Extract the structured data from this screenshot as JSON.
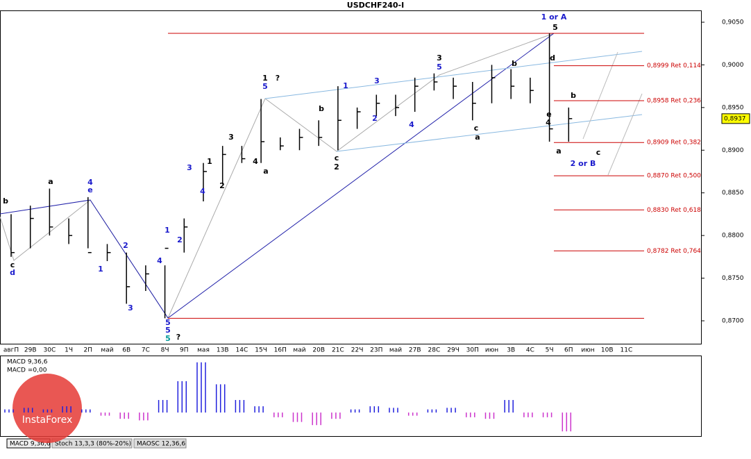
{
  "chart_data": [
    {
      "type": "ohlc",
      "title": "USDCHF240-I",
      "categories": [
        "авгП",
        "29В",
        "30С",
        "1Ч",
        "2П",
        "май",
        "6В",
        "7С",
        "8Ч",
        "9П",
        "мая",
        "13В",
        "14С",
        "15Ч",
        "16П",
        "май",
        "20В",
        "21С",
        "22Ч",
        "23П",
        "май",
        "27В",
        "28С",
        "29Ч",
        "30П",
        "июн",
        "3В",
        "4С",
        "5Ч",
        "6П",
        "июн",
        "10В",
        "11С"
      ],
      "high": [
        0.8825,
        0.8835,
        0.8855,
        0.882,
        0.8845,
        0.879,
        0.878,
        0.8765,
        0.8765,
        0.882,
        0.8885,
        0.8905,
        0.8905,
        0.896,
        0.8915,
        0.8925,
        0.8935,
        0.8975,
        0.895,
        0.8965,
        0.8965,
        0.8985,
        0.899,
        0.8985,
        0.898,
        0.9,
        0.8995,
        0.8985,
        0.9037,
        0.895,
        null,
        null,
        null
      ],
      "low": [
        0.8775,
        0.8785,
        0.88,
        0.879,
        0.8785,
        0.877,
        0.872,
        0.8735,
        0.8703,
        0.878,
        0.884,
        0.886,
        0.8885,
        0.8885,
        0.89,
        0.89,
        0.8905,
        0.89,
        0.8925,
        0.894,
        0.894,
        0.8945,
        0.897,
        0.896,
        0.8935,
        0.8955,
        0.896,
        0.8955,
        0.891,
        0.891,
        null,
        null,
        null
      ],
      "close": [
        0.878,
        0.882,
        0.881,
        0.88,
        0.878,
        0.878,
        0.874,
        0.8755,
        0.8785,
        0.881,
        0.8875,
        0.8895,
        0.889,
        0.891,
        0.8905,
        0.8915,
        0.8915,
        0.8935,
        0.8945,
        0.8955,
        0.895,
        0.8975,
        0.898,
        0.8975,
        0.8955,
        0.8985,
        0.8975,
        0.897,
        0.8925,
        0.8937,
        null,
        null,
        null
      ],
      "color": "#000000",
      "ylim": [
        0.8665,
        0.9065
      ],
      "yticks": [
        {
          "value": 0.905,
          "label": "0,9050"
        },
        {
          "value": 0.9,
          "label": "0,9000"
        },
        {
          "value": 0.895,
          "label": "0,8950"
        },
        {
          "value": 0.89,
          "label": "0,8900"
        },
        {
          "value": 0.885,
          "label": "0,8850"
        },
        {
          "value": 0.88,
          "label": "0,8800"
        },
        {
          "value": 0.875,
          "label": "0,8750"
        },
        {
          "value": 0.87,
          "label": "0,8700"
        }
      ],
      "current_price": {
        "value": 0.8937,
        "label": "0,8937"
      },
      "levels": [
        {
          "value": 0.9037
        },
        {
          "value": 0.8999,
          "label": "0,8999 Ret 0,114"
        },
        {
          "value": 0.8958,
          "label": "0,8958 Ret 0,236"
        },
        {
          "value": 0.8909,
          "label": "0,8909 Ret 0,382"
        },
        {
          "value": 0.887,
          "label": "0,8870 Ret 0,500"
        },
        {
          "value": 0.883,
          "label": "0,8830 Ret 0,618"
        },
        {
          "value": 0.8782,
          "label": "0,8782 Ret 0,764"
        },
        {
          "value": 0.8703
        }
      ],
      "level_color": "#cc0000",
      "annotations": [
        "1 or A",
        "5",
        "2 or B",
        "3",
        "5",
        "1",
        "5",
        "?",
        "5",
        "5",
        "5",
        "?",
        "4",
        "e",
        "d",
        "c",
        "b",
        "a",
        "b",
        "c",
        "2",
        "a",
        "c",
        "b",
        "a",
        "b",
        "c",
        "d",
        "e",
        "4",
        "1",
        "3",
        "2",
        "4",
        "3",
        "1",
        "2",
        "4",
        "1",
        "2",
        "3",
        "4",
        "3",
        "4",
        "a",
        "2",
        "1"
      ]
    },
    {
      "type": "bar",
      "title": "MACD 9,36,6",
      "subtitle": "MACD =0,00",
      "values": [
        0.0002,
        0.0003,
        0.0002,
        0.0004,
        0.0002,
        -0.0002,
        -0.0004,
        -0.0005,
        0.0008,
        0.002,
        0.0032,
        0.0018,
        0.0008,
        0.0004,
        -0.0003,
        -0.0006,
        -0.0008,
        -0.0004,
        0.0002,
        0.0004,
        0.0003,
        -0.0002,
        0.0002,
        0.0003,
        -0.0003,
        -0.0004,
        0.0008,
        -0.0003,
        -0.0003,
        -0.0012,
        null,
        null,
        null
      ],
      "pos_color": "#2020dd",
      "neg_color": "#cc33cc",
      "ylim": [
        -0.0015,
        0.0035
      ]
    }
  ],
  "tabs": [
    "MACD 9,36,6",
    "Stoch 13,3,3 (80%-20%)",
    "MAOSC 12,36,6"
  ],
  "logo": "InstaForex"
}
